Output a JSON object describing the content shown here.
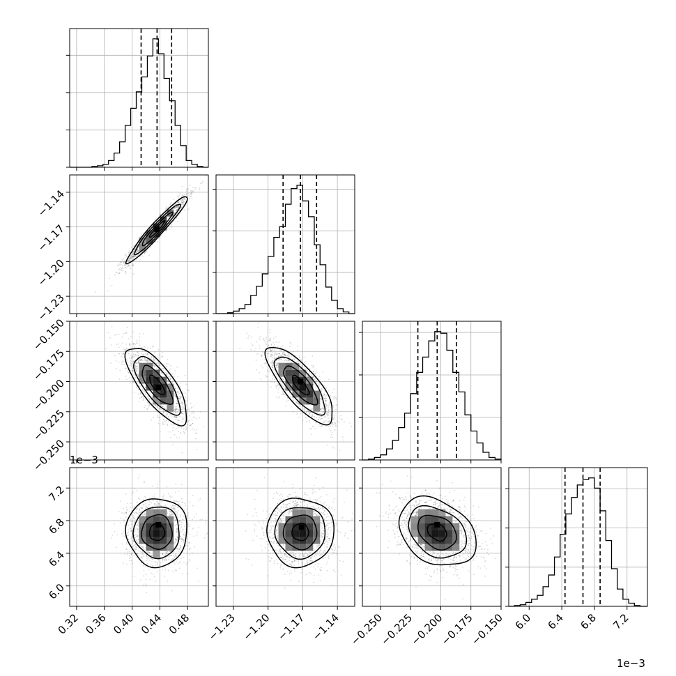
{
  "chart_data": {
    "type": "corner",
    "variables": [
      {
        "range": [
          0.31,
          0.51
        ],
        "ticks": [
          0.32,
          0.36,
          0.4,
          0.44,
          0.48
        ],
        "tick_labels": [
          "0.32",
          "0.36",
          "0.40",
          "0.44",
          "0.48"
        ],
        "offset_label": "",
        "quantiles": [
          0.413,
          0.436,
          0.457
        ],
        "histogram": {
          "bin_edges": [
            0.31,
            0.318,
            0.326,
            0.334,
            0.342,
            0.35,
            0.358,
            0.366,
            0.374,
            0.382,
            0.39,
            0.398,
            0.406,
            0.414,
            0.422,
            0.43,
            0.438,
            0.446,
            0.454,
            0.462,
            0.47,
            0.478,
            0.486,
            0.494,
            0.502,
            0.51
          ],
          "counts": [
            0,
            0,
            0,
            0,
            1,
            2,
            4,
            9,
            19,
            34,
            56,
            79,
            101,
            121,
            149,
            172,
            152,
            119,
            89,
            56,
            29,
            9,
            4,
            1,
            0
          ]
        }
      },
      {
        "range": [
          -1.245,
          -1.125
        ],
        "ticks": [
          -1.23,
          -1.2,
          -1.17,
          -1.14
        ],
        "tick_labels": [
          "−1.23",
          "−1.20",
          "−1.17",
          "−1.14"
        ],
        "offset_label": "",
        "quantiles": [
          -1.187,
          -1.172,
          -1.158
        ],
        "histogram": {
          "bin_edges": [
            -1.245,
            -1.24,
            -1.235,
            -1.23,
            -1.225,
            -1.22,
            -1.215,
            -1.21,
            -1.205,
            -1.2,
            -1.195,
            -1.19,
            -1.185,
            -1.18,
            -1.175,
            -1.17,
            -1.165,
            -1.16,
            -1.155,
            -1.15,
            -1.145,
            -1.14,
            -1.135,
            -1.13,
            -1.125
          ],
          "counts": [
            0,
            0,
            1,
            3,
            6,
            11,
            22,
            33,
            48,
            69,
            92,
            105,
            132,
            151,
            155,
            136,
            117,
            83,
            59,
            32,
            16,
            6,
            2,
            0
          ]
        }
      },
      {
        "range": [
          -0.265,
          -0.15
        ],
        "ticks": [
          -0.25,
          -0.225,
          -0.2,
          -0.175,
          -0.15
        ],
        "tick_labels": [
          "−0.250",
          "−0.225",
          "−0.200",
          "−0.175",
          "−0.150"
        ],
        "offset_label": "",
        "quantiles": [
          -0.219,
          -0.203,
          -0.187
        ],
        "histogram": {
          "bin_edges": [
            -0.265,
            -0.26,
            -0.255,
            -0.25,
            -0.245,
            -0.24,
            -0.235,
            -0.23,
            -0.225,
            -0.22,
            -0.215,
            -0.21,
            -0.205,
            -0.2,
            -0.195,
            -0.19,
            -0.185,
            -0.18,
            -0.175,
            -0.17,
            -0.165,
            -0.16,
            -0.155,
            -0.15
          ],
          "counts": [
            0,
            1,
            3,
            6,
            13,
            23,
            38,
            55,
            78,
            103,
            121,
            140,
            151,
            149,
            129,
            103,
            80,
            53,
            34,
            20,
            9,
            3,
            1
          ]
        }
      },
      {
        "range": [
          5.75,
          7.45
        ],
        "ticks": [
          6.0,
          6.4,
          6.8,
          7.2
        ],
        "tick_labels": [
          "6.0",
          "6.4",
          "6.8",
          "7.2"
        ],
        "offset_label": "1e−3",
        "quantiles": [
          6.44,
          6.66,
          6.87
        ],
        "histogram": {
          "bin_edges": [
            5.75,
            5.82,
            5.89,
            5.96,
            6.03,
            6.1,
            6.17,
            6.24,
            6.31,
            6.38,
            6.45,
            6.52,
            6.59,
            6.66,
            6.73,
            6.8,
            6.87,
            6.94,
            7.01,
            7.08,
            7.15,
            7.22,
            7.29,
            7.36,
            7.45
          ],
          "counts": [
            0,
            1,
            2,
            5,
            9,
            14,
            25,
            40,
            63,
            92,
            118,
            139,
            155,
            162,
            164,
            151,
            122,
            84,
            48,
            22,
            9,
            4,
            1,
            0
          ]
        }
      }
    ],
    "pairs": [
      {
        "row": 1,
        "col": 0,
        "mean": [
          0.436,
          -1.172
        ],
        "std": [
          0.022,
          0.0145
        ],
        "correlation": 0.96,
        "peak": [
          0.436,
          -1.172
        ]
      },
      {
        "row": 2,
        "col": 0,
        "mean": [
          0.436,
          -0.203
        ],
        "std": [
          0.022,
          0.016
        ],
        "correlation": -0.75,
        "peak": [
          0.438,
          -0.205
        ]
      },
      {
        "row": 2,
        "col": 1,
        "mean": [
          -1.172,
          -0.203
        ],
        "std": [
          0.0145,
          0.016
        ],
        "correlation": -0.78,
        "peak": [
          -1.172,
          -0.2
        ]
      },
      {
        "row": 3,
        "col": 0,
        "mean": [
          0.436,
          6.66
        ],
        "std": [
          0.022,
          0.21
        ],
        "correlation": 0.0,
        "peak": [
          0.438,
          6.75
        ]
      },
      {
        "row": 3,
        "col": 1,
        "mean": [
          -1.172,
          6.66
        ],
        "std": [
          0.0145,
          0.21
        ],
        "correlation": 0.0,
        "peak": [
          -1.171,
          6.72
        ]
      },
      {
        "row": 3,
        "col": 2,
        "mean": [
          -0.203,
          6.66
        ],
        "std": [
          0.016,
          0.21
        ],
        "correlation": -0.3,
        "peak": [
          -0.203,
          6.75
        ]
      }
    ],
    "contour_levels_sigma": [
      0.5,
      1.0,
      1.5,
      2.0
    ],
    "x_offset_label": "1e−3",
    "y_offset_label": "1e−3",
    "grid": true,
    "legend": "none"
  }
}
